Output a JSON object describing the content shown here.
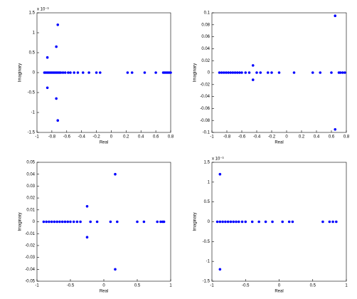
{
  "chart_data": [
    {
      "type": "scatter",
      "xlabel": "Real",
      "ylabel": "Imaginary",
      "y_exponent_label": "x 10⁻³",
      "xlim": [
        -1,
        0.8
      ],
      "xticks": [
        -1,
        -0.8,
        -0.6,
        -0.4,
        -0.2,
        0,
        0.2,
        0.4,
        0.6,
        0.8
      ],
      "ylim": [
        -1.5,
        1.5
      ],
      "yticks": [
        -1.5,
        -1,
        -0.5,
        0,
        0.5,
        1,
        1.5
      ],
      "series": [
        {
          "color": "#0000ff",
          "x": [
            -0.72,
            -0.74,
            -0.86,
            -0.72,
            -0.74,
            -0.86,
            -0.9,
            -0.88,
            -0.86,
            -0.84,
            -0.82,
            -0.8,
            -0.78,
            -0.76,
            -0.74,
            -0.72,
            -0.7,
            -0.68,
            -0.65,
            -0.62,
            -0.58,
            -0.55,
            -0.5,
            -0.45,
            -0.38,
            -0.3,
            -0.2,
            -0.15,
            0.22,
            0.28,
            0.45,
            0.6,
            0.7,
            0.72,
            0.74,
            0.76,
            0.78,
            0.8
          ],
          "y": [
            1.2,
            0.65,
            0.38,
            -1.2,
            -0.65,
            -0.38,
            0,
            0,
            0,
            0,
            0,
            0,
            0,
            0,
            0,
            0,
            0,
            0,
            0,
            0,
            0,
            0,
            0,
            0,
            0,
            0,
            0,
            0,
            0,
            0,
            0,
            0,
            0,
            0,
            0,
            0,
            0,
            0
          ]
        }
      ]
    },
    {
      "type": "scatter",
      "xlabel": "Real",
      "ylabel": "Imaginary",
      "xlim": [
        -1,
        0.8
      ],
      "xticks": [
        -1,
        -0.8,
        -0.6,
        -0.4,
        -0.2,
        0,
        0.2,
        0.4,
        0.6,
        0.8
      ],
      "ylim": [
        -0.1,
        0.1
      ],
      "yticks": [
        -0.1,
        -0.08,
        -0.06,
        -0.04,
        -0.02,
        0,
        0.02,
        0.04,
        0.06,
        0.08,
        0.1
      ],
      "series": [
        {
          "color": "#0000ff",
          "x": [
            0.65,
            0.65,
            -0.45,
            -0.45,
            -0.9,
            -0.87,
            -0.84,
            -0.81,
            -0.78,
            -0.75,
            -0.72,
            -0.69,
            -0.66,
            -0.63,
            -0.6,
            -0.55,
            -0.5,
            -0.4,
            -0.35,
            -0.25,
            -0.2,
            -0.1,
            0.1,
            0.35,
            0.45,
            0.6,
            0.7,
            0.72,
            0.75,
            0.78
          ],
          "y": [
            0.095,
            -0.095,
            0.012,
            -0.012,
            0,
            0,
            0,
            0,
            0,
            0,
            0,
            0,
            0,
            0,
            0,
            0,
            0,
            0,
            0,
            0,
            0,
            0,
            0,
            0,
            0,
            0,
            0,
            0,
            0,
            0
          ]
        }
      ]
    },
    {
      "type": "scatter",
      "xlabel": "Real",
      "ylabel": "Imaginary",
      "xlim": [
        -1,
        1
      ],
      "xticks": [
        -1,
        -0.5,
        0,
        0.5,
        1
      ],
      "ylim": [
        -0.05,
        0.05
      ],
      "yticks": [
        -0.05,
        -0.04,
        -0.03,
        -0.02,
        -0.01,
        0,
        0.01,
        0.02,
        0.03,
        0.04,
        0.05
      ],
      "series": [
        {
          "color": "#0000ff",
          "x": [
            0.17,
            0.17,
            -0.25,
            -0.25,
            -0.9,
            -0.86,
            -0.82,
            -0.78,
            -0.74,
            -0.7,
            -0.66,
            -0.62,
            -0.58,
            -0.54,
            -0.5,
            -0.45,
            -0.4,
            -0.35,
            -0.2,
            -0.1,
            0.1,
            0.2,
            0.5,
            0.6,
            0.8,
            0.85,
            0.88,
            0.9
          ],
          "y": [
            0.04,
            -0.04,
            0.013,
            -0.013,
            0,
            0,
            0,
            0,
            0,
            0,
            0,
            0,
            0,
            0,
            0,
            0,
            0,
            0,
            0,
            0,
            0,
            0,
            0,
            0,
            0,
            0,
            0,
            0
          ]
        }
      ]
    },
    {
      "type": "scatter",
      "xlabel": "Real",
      "ylabel": "Imaginary",
      "y_exponent_label": "x 10⁻³",
      "xlim": [
        -1,
        1
      ],
      "xticks": [
        -1,
        -0.5,
        0,
        0.5,
        1
      ],
      "ylim": [
        -1.5,
        1.5
      ],
      "yticks": [
        -1.5,
        -1,
        -0.5,
        0,
        0.5,
        1,
        1.5
      ],
      "series": [
        {
          "color": "#0000ff",
          "x": [
            -0.88,
            -0.88,
            -0.92,
            -0.88,
            -0.84,
            -0.8,
            -0.76,
            -0.72,
            -0.68,
            -0.64,
            -0.6,
            -0.55,
            -0.5,
            -0.4,
            -0.3,
            -0.2,
            -0.1,
            0.05,
            0.15,
            0.2,
            0.65,
            0.75,
            0.8,
            0.85
          ],
          "y": [
            1.2,
            -1.2,
            0,
            0,
            0,
            0,
            0,
            0,
            0,
            0,
            0,
            0,
            0,
            0,
            0,
            0,
            0,
            0,
            0,
            0,
            0,
            0,
            0,
            0
          ]
        }
      ]
    }
  ]
}
